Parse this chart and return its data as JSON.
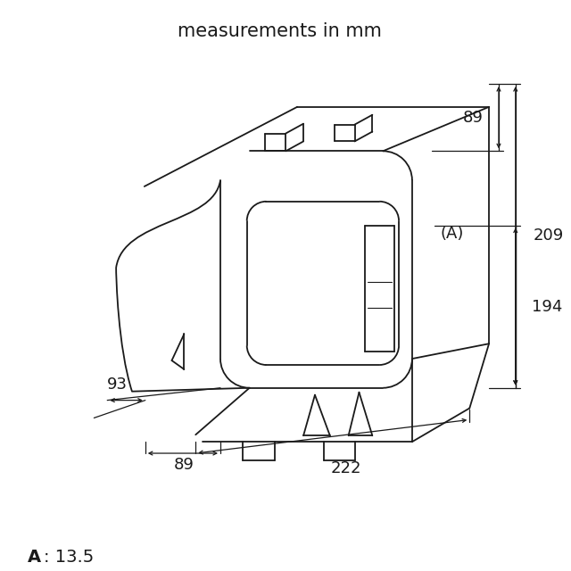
{
  "title": "measurements in mm",
  "bg_color": "#ffffff",
  "line_color": "#1a1a1a",
  "title_fontsize": 15,
  "footer_bold": "A",
  "footer_normal": ": 13.5",
  "dim_89_top": "89",
  "dim_209": "209",
  "dim_194": "194",
  "dim_A": "(A)",
  "dim_93": "93",
  "dim_222": "222",
  "dim_89_bot": "89"
}
